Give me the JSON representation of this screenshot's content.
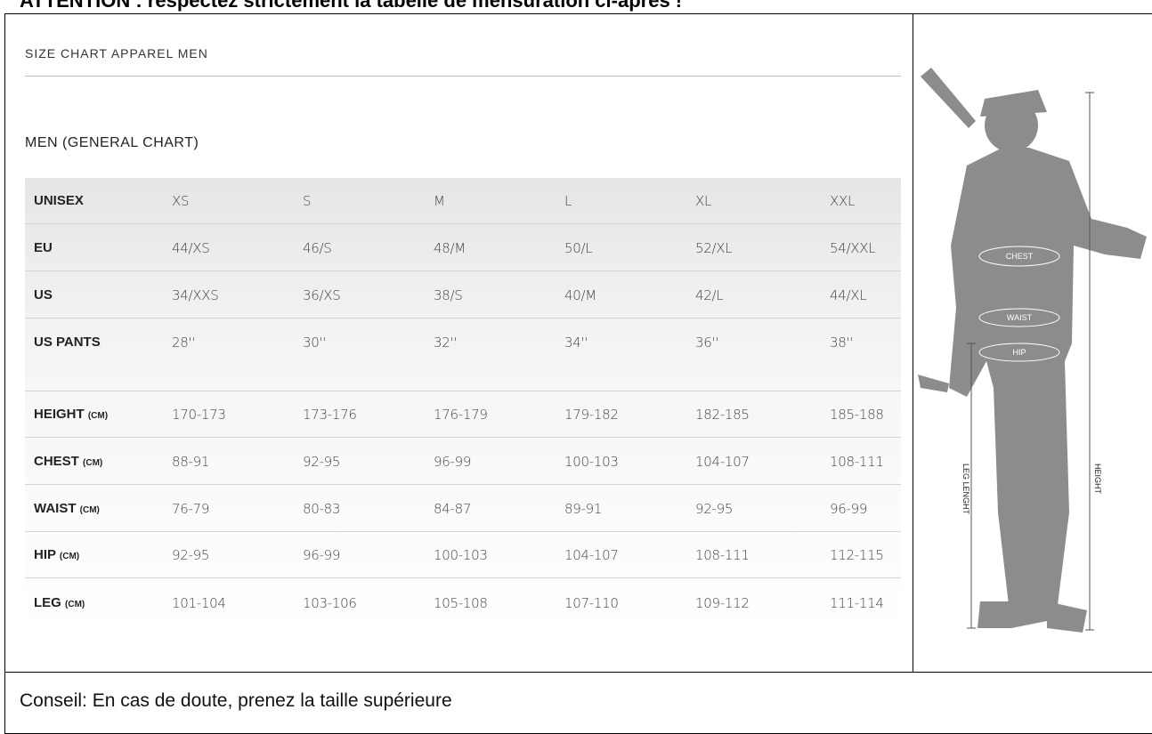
{
  "header": {
    "title": "ATTENTION : respectez strictement la tabelle de mensuration ci-après !"
  },
  "chart": {
    "title": "SIZE CHART APPAREL MEN",
    "subtitle": "MEN (GENERAL CHART)"
  },
  "table": {
    "header": [
      "UNISEX",
      "XS",
      "S",
      "M",
      "L",
      "XL",
      "XXL"
    ],
    "rows": [
      {
        "label": "EU",
        "cells": [
          "44/XS",
          "46/S",
          "48/M",
          "50/L",
          "52/XL",
          "54/XXL"
        ]
      },
      {
        "label": "US",
        "cells": [
          "34/XXS",
          "36/XS",
          "38/S",
          "40/M",
          "42/L",
          "44/XL"
        ]
      },
      {
        "label": "US PANTS",
        "cells": [
          "28''",
          "30''",
          "32''",
          "34''",
          "36''",
          "38''"
        ]
      },
      {
        "label": "HEIGHT",
        "unit": "(CM)",
        "cells": [
          "170-173",
          "173-176",
          "176-179",
          "179-182",
          "182-185",
          "185-188"
        ]
      },
      {
        "label": "CHEST",
        "unit": "(CM)",
        "cells": [
          "88-91",
          "92-95",
          "96-99",
          "100-103",
          "104-107",
          "108-111"
        ]
      },
      {
        "label": "WAIST",
        "unit": "(CM)",
        "cells": [
          "76-79",
          "80-83",
          "84-87",
          "89-91",
          "92-95",
          "96-99"
        ]
      },
      {
        "label": "HIP",
        "unit": "(CM)",
        "cells": [
          "92-95",
          "96-99",
          "100-103",
          "104-107",
          "108-111",
          "112-115"
        ]
      },
      {
        "label": "LEG",
        "unit": "(CM)",
        "cells": [
          "101-104",
          "103-106",
          "105-108",
          "107-110",
          "109-112",
          "111-114"
        ]
      }
    ]
  },
  "figure": {
    "labels": {
      "chest": "CHEST",
      "waist": "WAIST",
      "hip": "HIP",
      "leg": "LEG LENGHT",
      "height": "HEIGHT"
    }
  },
  "footer": {
    "note": "Conseil: En cas de doute, prenez la taille supérieure"
  }
}
